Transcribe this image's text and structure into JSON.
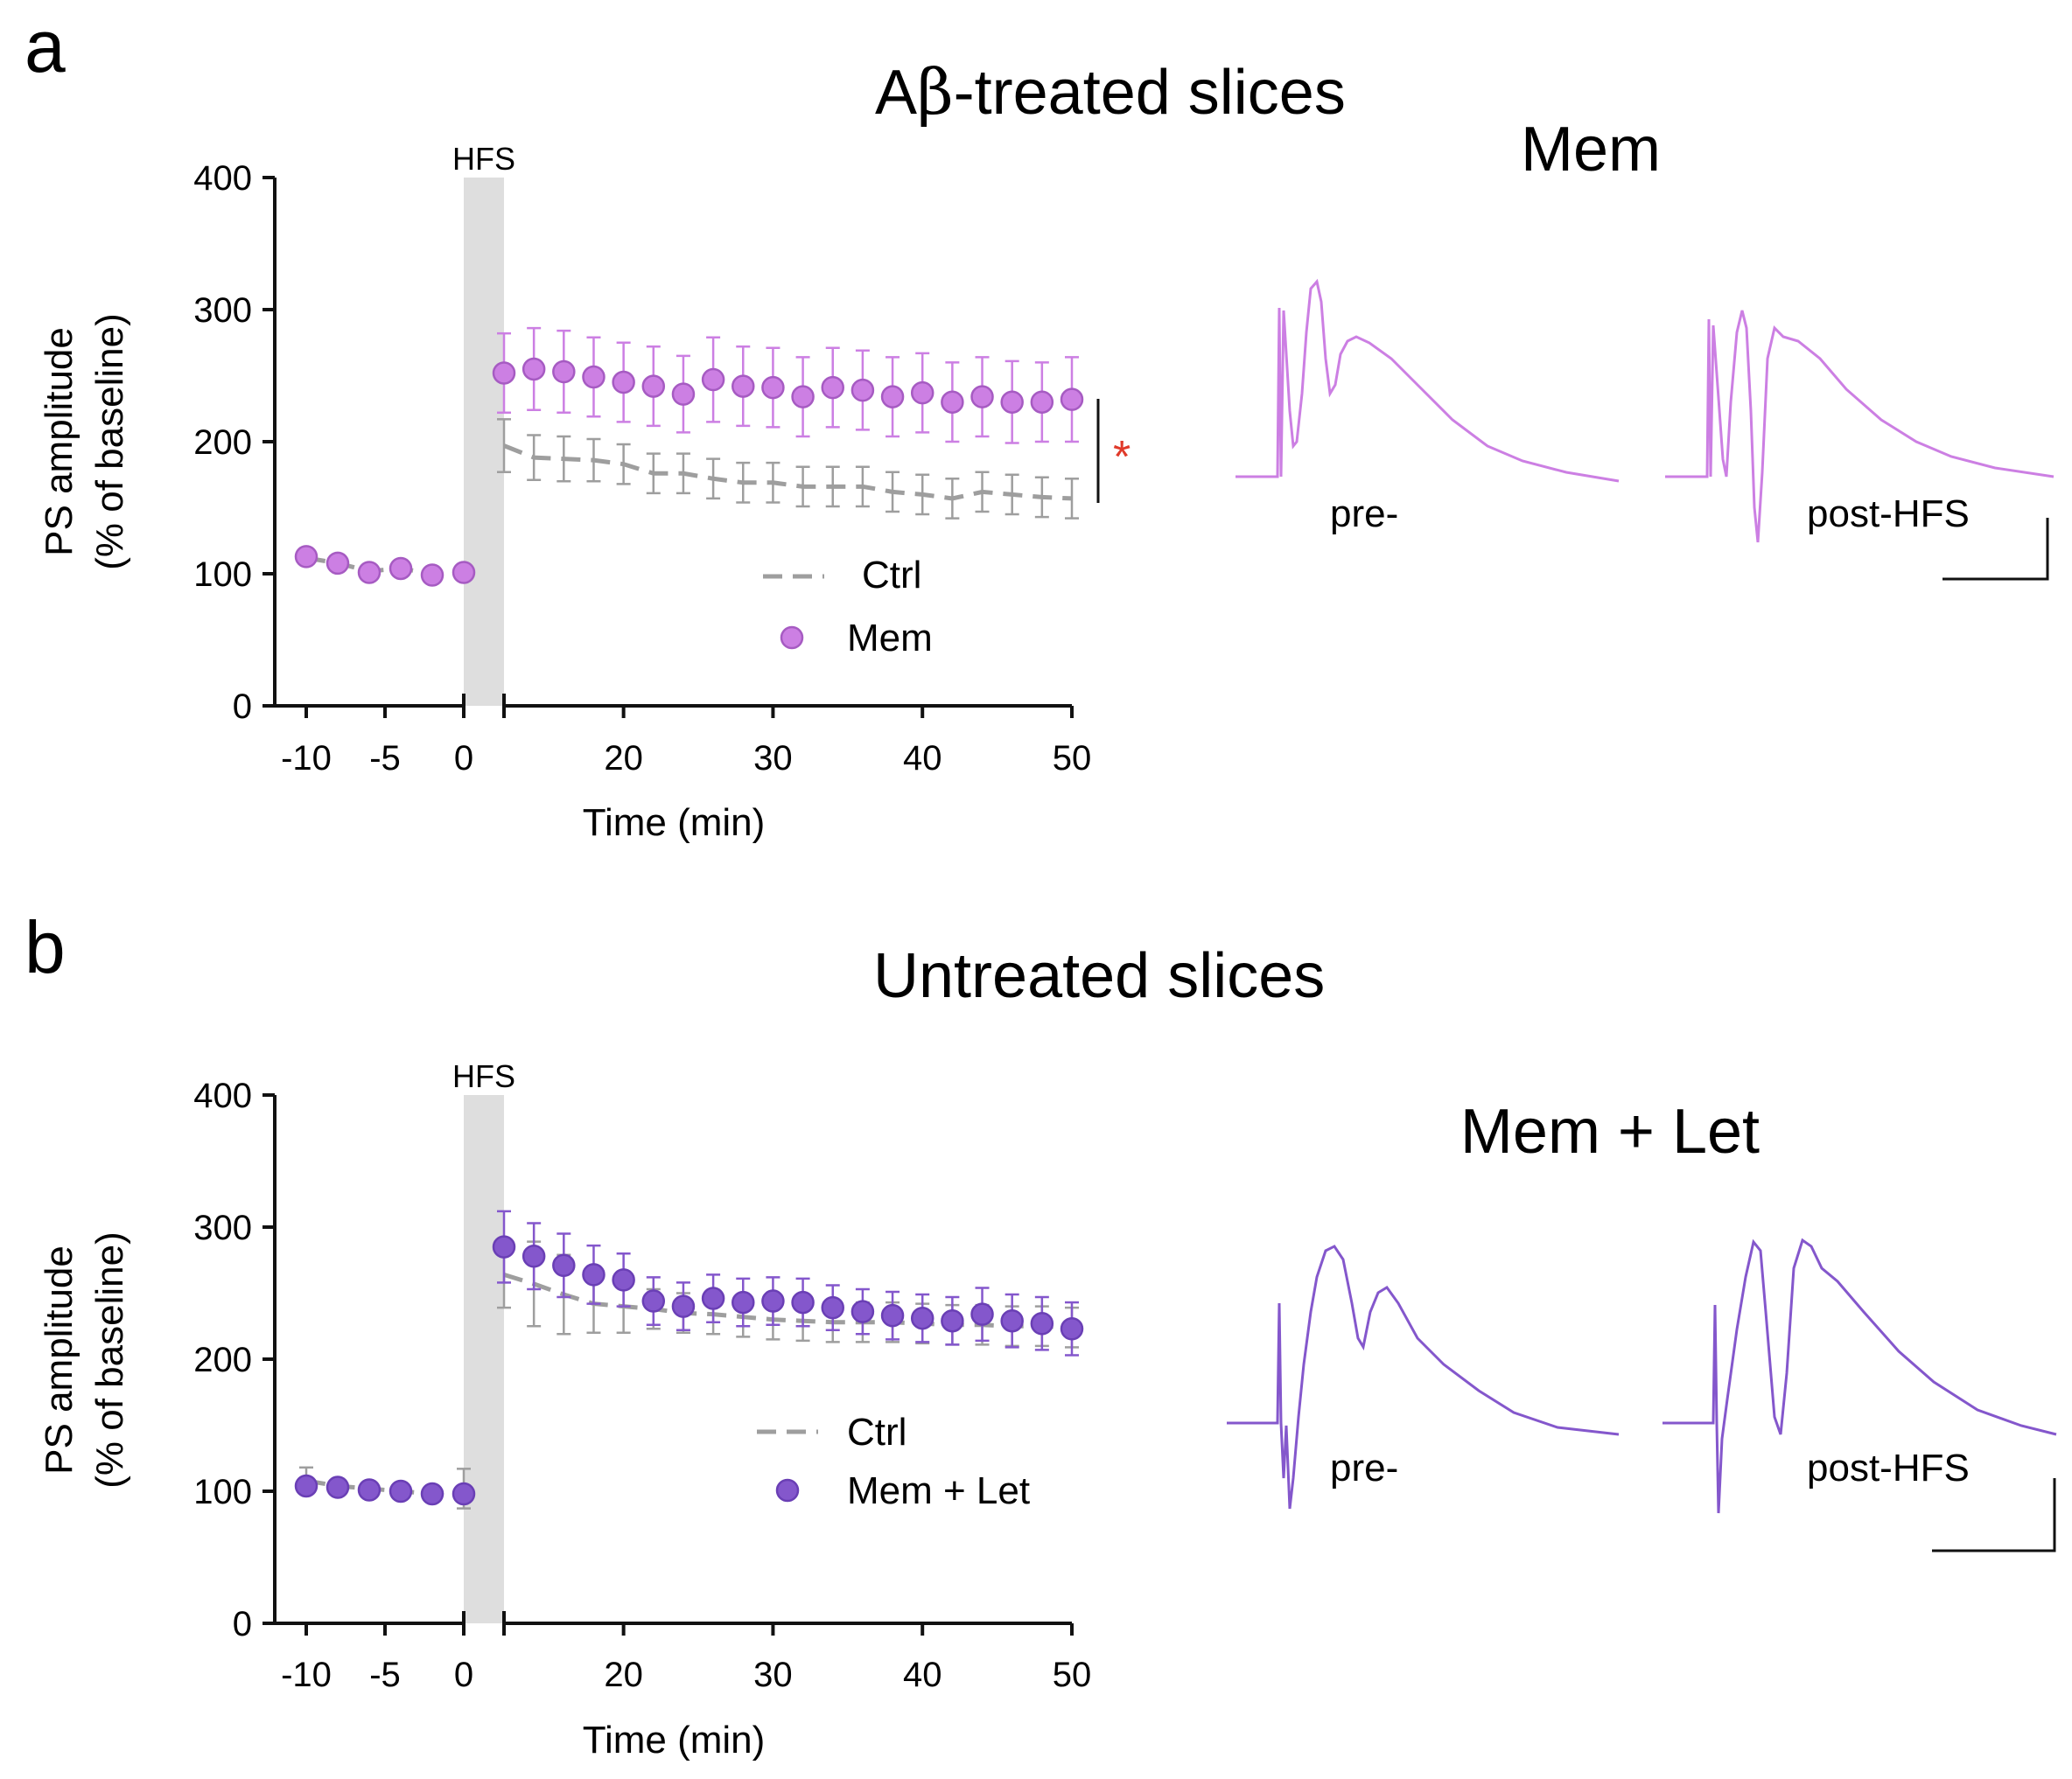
{
  "figure": {
    "panels": [
      {
        "letter": "a",
        "title_main": "A",
        "title_greek": "β",
        "title_rest": "-treated slices",
        "trace_title": "Mem",
        "trace_labels": {
          "pre": "pre-",
          "post": "post-HFS"
        },
        "significance": "*",
        "colors": {
          "treatment": "#cc7fe3",
          "treatment_edge": "#a65bc2",
          "ctrl": "#9e9e9e",
          "hfs_band": "#dedede",
          "star": "#e03a2a"
        }
      },
      {
        "letter": "b",
        "title_main": "Untreated slices",
        "trace_title": "Mem + Let",
        "trace_labels": {
          "pre": "pre-",
          "post": "post-HFS"
        },
        "colors": {
          "treatment": "#8457cc",
          "treatment_edge": "#6a3fb5",
          "ctrl": "#9e9e9e",
          "hfs_band": "#dedede"
        }
      }
    ]
  },
  "chart_data": [
    {
      "type": "scatter",
      "title": "Aβ-treated slices",
      "xlabel": "Time (min)",
      "ylabel": "PS amplitude (% of baseline)",
      "ylim": [
        0,
        400
      ],
      "yticks": [
        0,
        100,
        200,
        300,
        400
      ],
      "xticks": [
        "-10",
        "-5",
        "0",
        "20",
        "30",
        "40",
        "50"
      ],
      "hfs_label": "HFS",
      "legend": [
        "Ctrl",
        "Mem"
      ],
      "series": [
        {
          "name": "Ctrl",
          "style": "dashed-line",
          "x": [
            -10,
            -8,
            -6,
            -4,
            -2,
            0,
            12,
            14,
            16,
            18,
            20,
            22,
            24,
            26,
            28,
            30,
            32,
            34,
            36,
            38,
            40,
            42,
            44,
            46,
            48,
            50
          ],
          "y": [
            112,
            108,
            102,
            104,
            100,
            100,
            197,
            188,
            187,
            186,
            183,
            176,
            176,
            172,
            169,
            169,
            166,
            166,
            166,
            162,
            160,
            157,
            162,
            160,
            158,
            157
          ],
          "err": [
            0,
            0,
            0,
            0,
            0,
            0,
            20,
            17,
            17,
            16,
            15,
            15,
            15,
            15,
            15,
            15,
            15,
            15,
            15,
            15,
            15,
            15,
            15,
            15,
            15,
            15
          ]
        },
        {
          "name": "Mem",
          "style": "markers",
          "x": [
            -10,
            -8,
            -6,
            -4,
            -2,
            0,
            12,
            14,
            16,
            18,
            20,
            22,
            24,
            26,
            28,
            30,
            32,
            34,
            36,
            38,
            40,
            42,
            44,
            46,
            48,
            50
          ],
          "y": [
            113,
            108,
            101,
            104,
            99,
            101,
            252,
            255,
            253,
            249,
            245,
            242,
            236,
            247,
            242,
            241,
            234,
            241,
            239,
            234,
            237,
            230,
            234,
            230,
            230,
            232
          ],
          "err": [
            0,
            0,
            0,
            0,
            0,
            0,
            30,
            31,
            31,
            30,
            30,
            30,
            29,
            32,
            30,
            30,
            30,
            30,
            30,
            30,
            30,
            30,
            30,
            31,
            30,
            32
          ]
        }
      ]
    },
    {
      "type": "scatter",
      "title": "Untreated slices",
      "xlabel": "Time (min)",
      "ylabel": "PS amplitude (% of baseline)",
      "ylim": [
        0,
        400
      ],
      "yticks": [
        0,
        100,
        200,
        300,
        400
      ],
      "xticks": [
        "-10",
        "-5",
        "0",
        "20",
        "30",
        "40",
        "50"
      ],
      "hfs_label": "HFS",
      "legend": [
        "Ctrl",
        "Mem + Let"
      ],
      "series": [
        {
          "name": "Ctrl",
          "style": "dashed-line",
          "x": [
            -10,
            -8,
            -6,
            -4,
            -2,
            0,
            12,
            14,
            16,
            18,
            20,
            22,
            24,
            26,
            28,
            30,
            32,
            34,
            36,
            38,
            40,
            42,
            44,
            46,
            48,
            50
          ],
          "y": [
            108,
            104,
            102,
            100,
            98,
            102,
            264,
            257,
            249,
            242,
            240,
            238,
            235,
            234,
            232,
            230,
            229,
            228,
            228,
            228,
            227,
            226,
            226,
            225,
            225,
            224
          ],
          "err": [
            10,
            0,
            0,
            0,
            0,
            15,
            25,
            32,
            30,
            22,
            20,
            15,
            15,
            15,
            15,
            15,
            15,
            15,
            15,
            15,
            15,
            15,
            15,
            15,
            15,
            15
          ]
        },
        {
          "name": "Mem + Let",
          "style": "markers",
          "x": [
            -10,
            -8,
            -6,
            -4,
            -2,
            0,
            12,
            14,
            16,
            18,
            20,
            22,
            24,
            26,
            28,
            30,
            32,
            34,
            36,
            38,
            40,
            42,
            44,
            46,
            48,
            50
          ],
          "y": [
            104,
            103,
            101,
            100,
            98,
            98,
            285,
            278,
            271,
            264,
            260,
            244,
            240,
            246,
            243,
            244,
            243,
            239,
            236,
            233,
            231,
            229,
            234,
            229,
            227,
            223
          ],
          "err": [
            0,
            0,
            0,
            0,
            0,
            0,
            27,
            25,
            24,
            22,
            20,
            18,
            18,
            18,
            18,
            18,
            18,
            17,
            17,
            18,
            18,
            18,
            20,
            20,
            20,
            20
          ]
        }
      ]
    }
  ]
}
